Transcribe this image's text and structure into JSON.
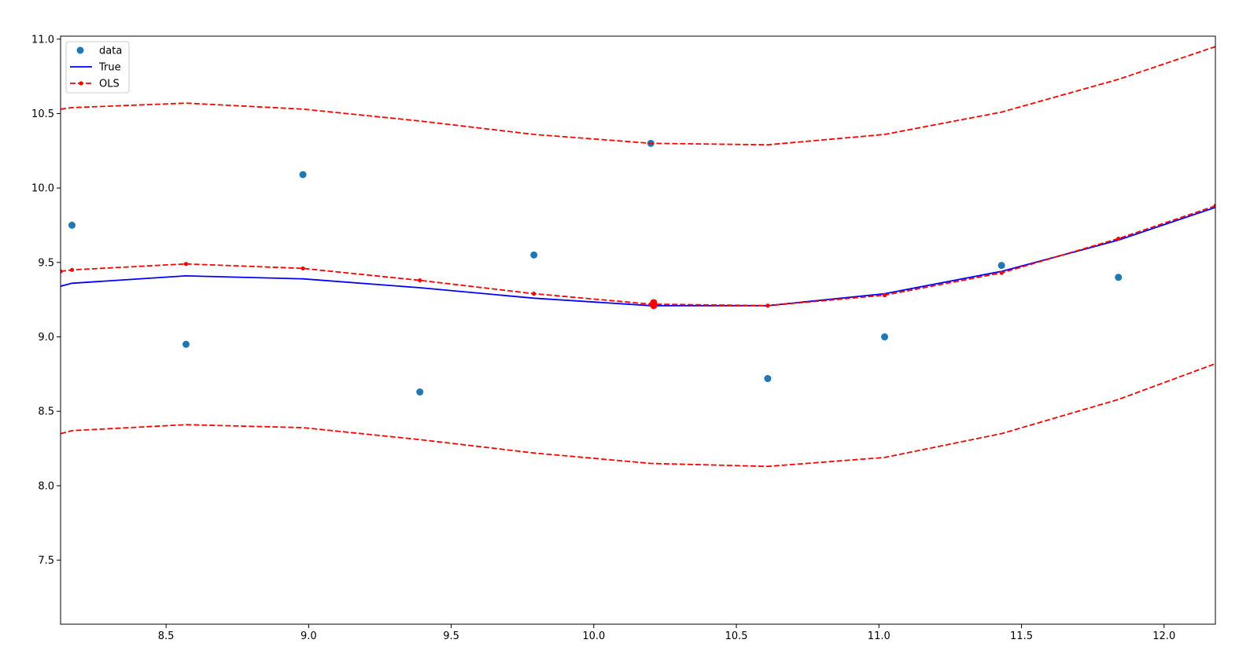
{
  "chart_data": {
    "type": "scatter",
    "title": "",
    "xlabel": "",
    "ylabel": "",
    "xlim": [
      8.13,
      12.18
    ],
    "ylim": [
      7.07,
      11.02
    ],
    "xticks": [
      {
        "value": 8.5,
        "label": "8.5"
      },
      {
        "value": 9.0,
        "label": "9.0"
      },
      {
        "value": 9.5,
        "label": "9.5"
      },
      {
        "value": 10.0,
        "label": "10.0"
      },
      {
        "value": 10.5,
        "label": "10.5"
      },
      {
        "value": 11.0,
        "label": "11.0"
      },
      {
        "value": 11.5,
        "label": "11.5"
      },
      {
        "value": 12.0,
        "label": "12.0"
      }
    ],
    "yticks": [
      {
        "value": 7.5,
        "label": "7.5"
      },
      {
        "value": 8.0,
        "label": "8.0"
      },
      {
        "value": 8.5,
        "label": "8.5"
      },
      {
        "value": 9.0,
        "label": "9.0"
      },
      {
        "value": 9.5,
        "label": "9.5"
      },
      {
        "value": 10.0,
        "label": "10.0"
      },
      {
        "value": 10.5,
        "label": "10.5"
      },
      {
        "value": 11.0,
        "label": "11.0"
      }
    ],
    "grid": false,
    "legend_position": "upper left",
    "legend": [
      {
        "label": "data",
        "marker": "circle",
        "color": "#1f77b4"
      },
      {
        "label": "True",
        "line": "solid",
        "color": "#0000ff"
      },
      {
        "label": "OLS",
        "line": "dashed",
        "marker": "dot",
        "color": "#ff0000"
      }
    ],
    "series": [
      {
        "name": "data",
        "kind": "scatter",
        "color": "#1f77b4",
        "points": [
          [
            8.17,
            9.75
          ],
          [
            8.57,
            8.95
          ],
          [
            8.98,
            10.09
          ],
          [
            9.39,
            8.63
          ],
          [
            9.79,
            9.55
          ],
          [
            10.2,
            10.3
          ],
          [
            10.61,
            8.72
          ],
          [
            11.02,
            9.0
          ],
          [
            11.43,
            9.48
          ],
          [
            11.84,
            9.4
          ]
        ]
      },
      {
        "name": "True",
        "kind": "line",
        "style": "solid",
        "color": "#0000ff",
        "points": [
          [
            8.13,
            9.34
          ],
          [
            8.17,
            9.36
          ],
          [
            8.57,
            9.41
          ],
          [
            8.98,
            9.39
          ],
          [
            9.39,
            9.33
          ],
          [
            9.79,
            9.26
          ],
          [
            10.2,
            9.21
          ],
          [
            10.61,
            9.21
          ],
          [
            11.02,
            9.29
          ],
          [
            11.43,
            9.44
          ],
          [
            11.84,
            9.65
          ],
          [
            12.18,
            9.87
          ]
        ]
      },
      {
        "name": "OLS",
        "kind": "line",
        "style": "dashed",
        "markers": true,
        "color": "#ff0000",
        "points": [
          [
            8.13,
            9.44
          ],
          [
            8.17,
            9.45
          ],
          [
            8.57,
            9.49
          ],
          [
            8.98,
            9.46
          ],
          [
            9.39,
            9.38
          ],
          [
            9.79,
            9.29
          ],
          [
            10.2,
            9.22
          ],
          [
            10.61,
            9.21
          ],
          [
            11.02,
            9.28
          ],
          [
            11.43,
            9.43
          ],
          [
            11.84,
            9.66
          ],
          [
            12.18,
            9.88
          ]
        ],
        "extra_markers": [
          [
            10.21,
            9.21
          ],
          [
            10.21,
            9.22
          ],
          [
            10.21,
            9.23
          ]
        ]
      },
      {
        "name": "",
        "kind": "line",
        "style": "dashed",
        "color": "#ff0000",
        "points": [
          [
            8.13,
            10.53
          ],
          [
            8.17,
            10.54
          ],
          [
            8.57,
            10.57
          ],
          [
            8.98,
            10.53
          ],
          [
            9.39,
            10.45
          ],
          [
            9.79,
            10.36
          ],
          [
            10.2,
            10.3
          ],
          [
            10.61,
            10.29
          ],
          [
            11.02,
            10.36
          ],
          [
            11.43,
            10.51
          ],
          [
            11.84,
            10.73
          ],
          [
            12.18,
            10.95
          ]
        ]
      },
      {
        "name": "",
        "kind": "line",
        "style": "dashed",
        "color": "#ff0000",
        "points": [
          [
            8.13,
            8.35
          ],
          [
            8.17,
            8.37
          ],
          [
            8.57,
            8.41
          ],
          [
            8.98,
            8.39
          ],
          [
            9.39,
            8.31
          ],
          [
            9.79,
            8.22
          ],
          [
            10.2,
            8.15
          ],
          [
            10.61,
            8.13
          ],
          [
            11.02,
            8.19
          ],
          [
            11.43,
            8.35
          ],
          [
            11.84,
            8.58
          ],
          [
            12.18,
            8.82
          ]
        ]
      }
    ]
  }
}
